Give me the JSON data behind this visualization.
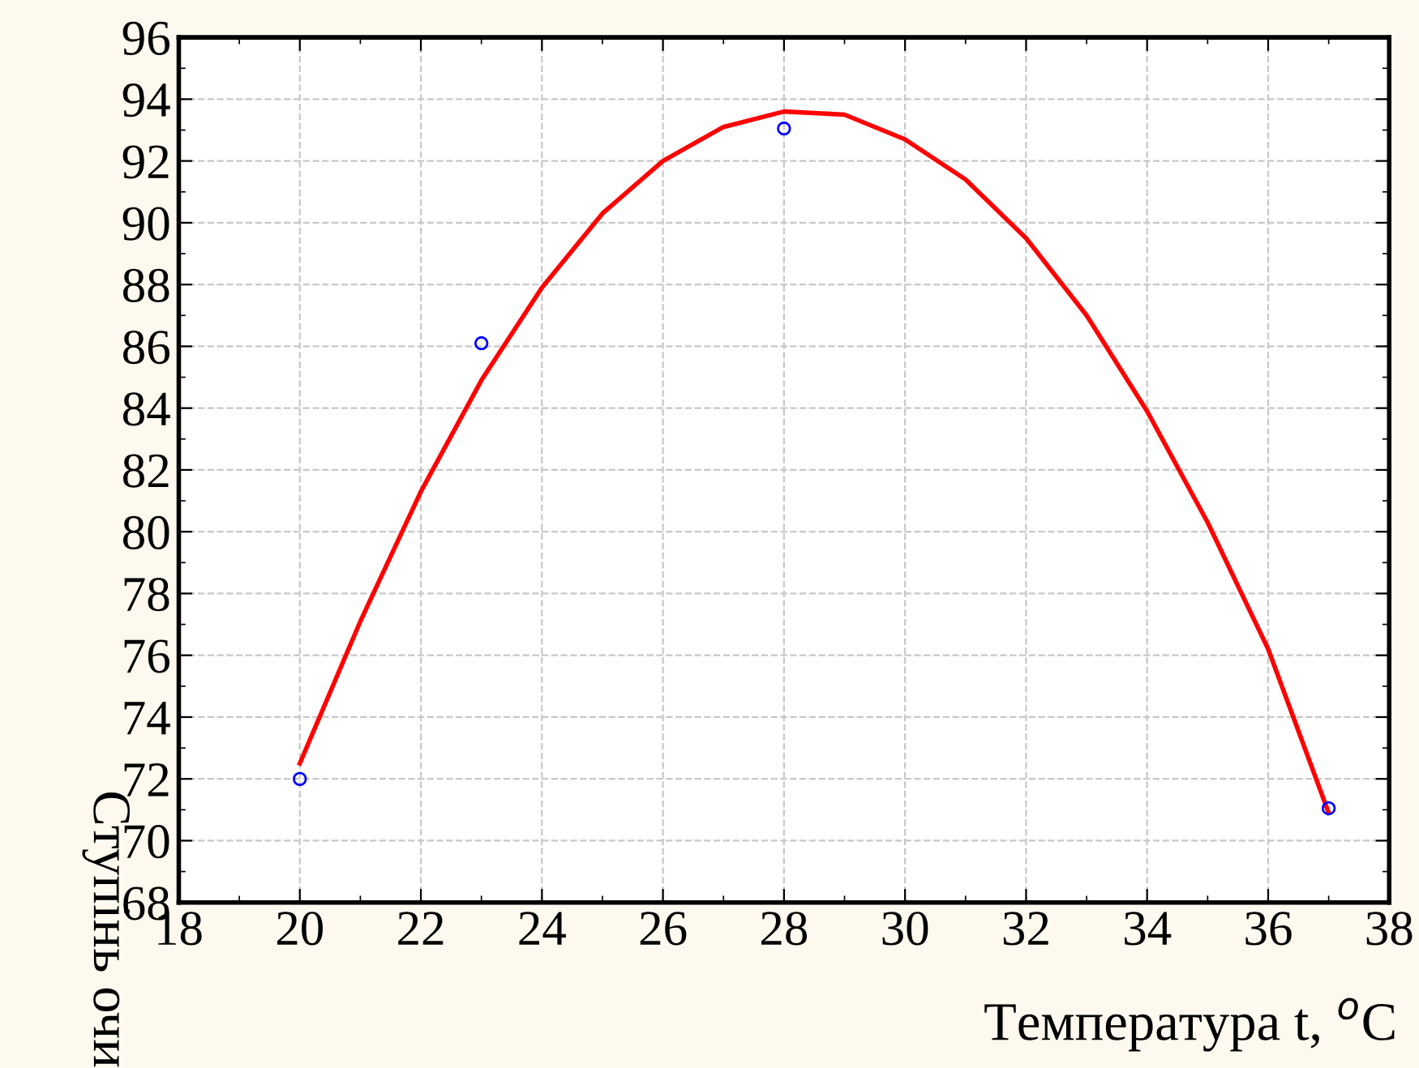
{
  "chart_data": {
    "type": "scatter",
    "xlabel": "Температура t, $^{o}$C",
    "ylabel": "Ступінь очи",
    "series": [
      {
        "type": "scatter",
        "color": "#0000ff",
        "marker": "circle",
        "x": [
          20,
          23,
          28,
          37
        ],
        "values": [
          72.0,
          86.1,
          93.05,
          71.05
        ]
      },
      {
        "type": "line",
        "color": "#ff0000",
        "line_style": "solid",
        "marker": "none",
        "x": [
          20,
          21,
          22,
          23,
          24,
          25,
          26,
          27,
          28,
          29,
          30,
          31,
          32,
          33,
          34,
          35,
          36,
          37
        ],
        "values": [
          72.5,
          77.1,
          81.3,
          84.9,
          87.9,
          90.3,
          92.0,
          93.1,
          93.6,
          93.5,
          92.7,
          91.4,
          89.5,
          87.0,
          83.9,
          80.3,
          76.2,
          70.9
        ]
      }
    ],
    "xlim": [
      18,
      38
    ],
    "xticks": [
      18,
      20,
      22,
      24,
      26,
      28,
      30,
      32,
      34,
      36,
      38
    ],
    "ylim": [
      68,
      96
    ],
    "yticks": [
      68,
      70,
      72,
      74,
      76,
      78,
      80,
      82,
      84,
      86,
      88,
      90,
      92,
      94,
      96
    ],
    "grid": true
  }
}
